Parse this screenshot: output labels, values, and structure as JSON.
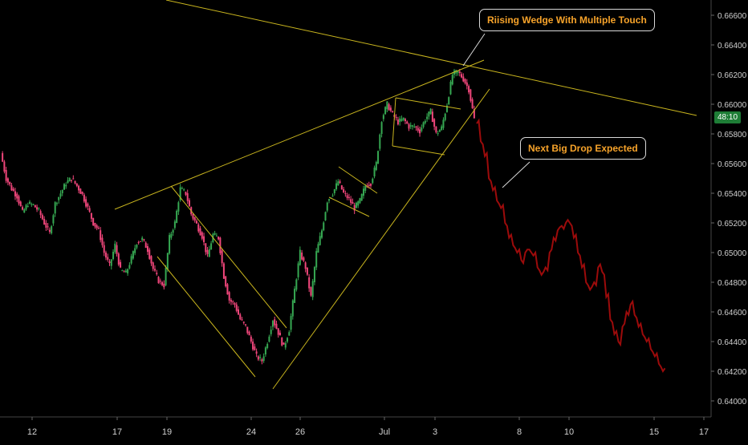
{
  "chart_data": {
    "type": "candlestick-line",
    "instrument_note": "",
    "ylim": [
      0.6398,
      0.6668
    ],
    "y_ticks": [
      "0.66600",
      "0.66400",
      "0.66200",
      "0.66000",
      "0.65800",
      "0.65600",
      "0.65400",
      "0.65200",
      "0.65000",
      "0.64800",
      "0.64600",
      "0.64400",
      "0.64200",
      "0.64000"
    ],
    "x_ticks": [
      "12",
      "17",
      "19",
      "24",
      "26",
      "Jul",
      "3",
      "8",
      "10",
      "15",
      "17"
    ],
    "current_price_label": "48:10",
    "annotations": [
      "Riising Wedge With Multiple Touch",
      "Next Big Drop Expected"
    ],
    "historical_path": [
      0.6567,
      0.655,
      0.6543,
      0.6538,
      0.6527,
      0.6533,
      0.6532,
      0.6528,
      0.652,
      0.6513,
      0.6533,
      0.654,
      0.6547,
      0.655,
      0.6545,
      0.6539,
      0.653,
      0.652,
      0.6515,
      0.65,
      0.6491,
      0.6505,
      0.6488,
      0.6486,
      0.6496,
      0.6507,
      0.6509,
      0.6502,
      0.6489,
      0.6481,
      0.6478,
      0.651,
      0.652,
      0.6543,
      0.654,
      0.6526,
      0.6519,
      0.6511,
      0.6497,
      0.6512,
      0.651,
      0.6484,
      0.6468,
      0.6465,
      0.6455,
      0.645,
      0.644,
      0.643,
      0.6427,
      0.644,
      0.6455,
      0.6446,
      0.6436,
      0.6448,
      0.6475,
      0.65,
      0.649,
      0.647,
      0.65,
      0.6515,
      0.6535,
      0.654,
      0.6548,
      0.654,
      0.6536,
      0.653,
      0.6535,
      0.6545,
      0.6547,
      0.656,
      0.659,
      0.66,
      0.6593,
      0.6588,
      0.659,
      0.6585,
      0.6585,
      0.6582,
      0.659,
      0.6595,
      0.658,
      0.6584,
      0.66,
      0.662,
      0.6622,
      0.6617,
      0.661,
      0.659
    ],
    "projected_path": [
      0.6587,
      0.6575,
      0.6565,
      0.655,
      0.6542,
      0.6535,
      0.653,
      0.652,
      0.651,
      0.6505,
      0.65,
      0.6495,
      0.65,
      0.6502,
      0.6498,
      0.649,
      0.6485,
      0.649,
      0.65,
      0.651,
      0.6515,
      0.6518,
      0.652,
      0.652,
      0.651,
      0.65,
      0.649,
      0.648,
      0.6475,
      0.648,
      0.649,
      0.6487,
      0.647,
      0.6455,
      0.6445,
      0.644,
      0.645,
      0.646,
      0.6465,
      0.6458,
      0.645,
      0.6445,
      0.644,
      0.6435,
      0.643,
      0.6425,
      0.642
    ]
  },
  "colors": {
    "background": "#000000",
    "bull_candle": "#36a852",
    "bear_candle": "#f0467b",
    "projection": "#9c0b0b",
    "trendline": "#c9b51e",
    "axis_text": "#d0d0d0",
    "callout_text": "#f7a32a",
    "price_tag": "#1e7d36"
  }
}
